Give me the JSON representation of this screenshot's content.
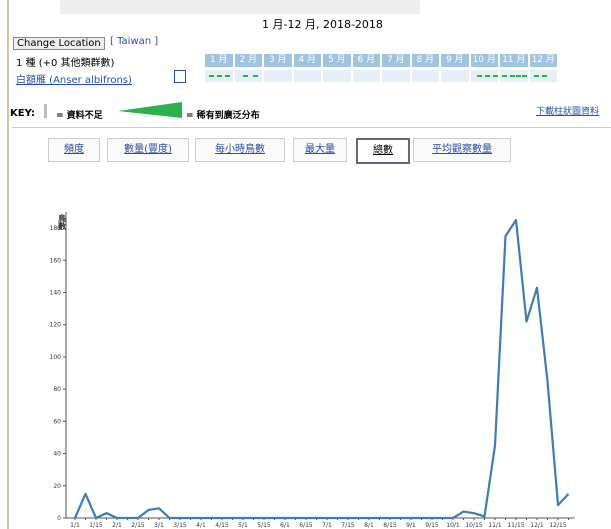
{
  "header": {
    "range": "1 月-12 月, 2018-2018",
    "change_location": "Change Location",
    "location": "[ Taiwan ]",
    "species_count": "1 種 (+0 其他類群數)",
    "species": "白額雁 (Anser albifrons)",
    "months": [
      "1 月",
      "2 月",
      "3 月",
      "4 月",
      "5 月",
      "6 月",
      "7 月",
      "8 月",
      "9 月",
      "10 月",
      "11 月",
      "12 月"
    ]
  },
  "key": {
    "label": "KEY:",
    "insufficient": "= 資料不足",
    "range": "= 稀有到廣泛分布",
    "download": "下載柱狀圖資料"
  },
  "tabs": [
    "頻度",
    "數量(豐度)",
    "每小時鳥數",
    "最大量",
    "總數",
    "平均觀察數量"
  ],
  "chart_data": {
    "type": "line",
    "y_label": "鳥數",
    "color": "#3d7cb8",
    "categories": [
      "1/1",
      null,
      "1/15",
      null,
      "2/1",
      null,
      "2/15",
      null,
      "3/1",
      null,
      "3/15",
      null,
      "4/1",
      null,
      "4/15",
      null,
      "5/1",
      null,
      "5/15",
      null,
      "6/1",
      null,
      "6/15",
      null,
      "7/1",
      null,
      "7/15",
      null,
      "8/1",
      null,
      "8/15",
      null,
      "9/1",
      null,
      "9/15",
      null,
      "10/1",
      null,
      "10/15",
      null,
      "11/1",
      null,
      "11/15",
      null,
      "12/1",
      null,
      "12/15",
      null
    ],
    "values": [
      0,
      15,
      0,
      3,
      0,
      0,
      0,
      5,
      6,
      0,
      0,
      0,
      0,
      0,
      0,
      0,
      0,
      0,
      0,
      0,
      0,
      0,
      0,
      0,
      0,
      0,
      0,
      0,
      0,
      0,
      0,
      0,
      0,
      0,
      0,
      0,
      0,
      4,
      3,
      1,
      45,
      175,
      185,
      122,
      143,
      85,
      8,
      15
    ],
    "ylim": [
      0,
      190
    ],
    "yticks": [
      0,
      20,
      40,
      60,
      80,
      100,
      120,
      140,
      160,
      180
    ]
  }
}
